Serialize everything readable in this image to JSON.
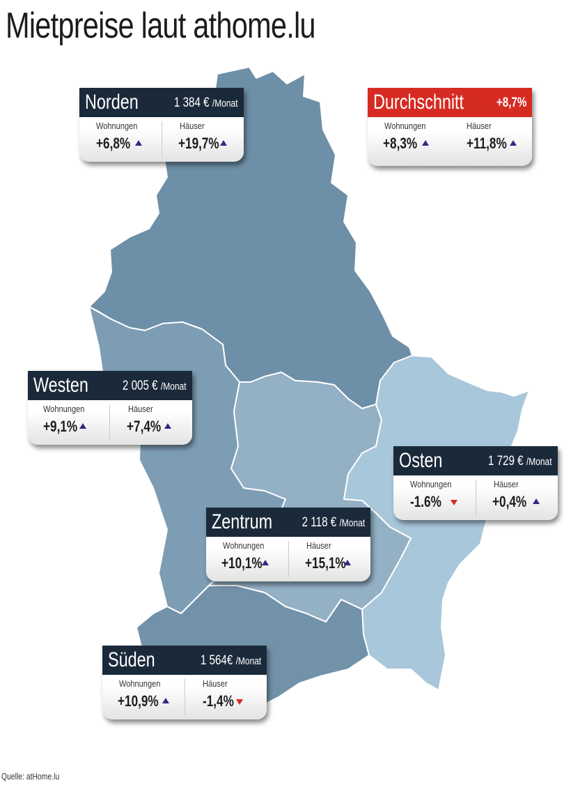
{
  "title": "Mietpreise laut athome.lu",
  "source": "Quelle: atHome.lu",
  "colors": {
    "header_dark": "#1b2a3a",
    "header_red": "#d62b22",
    "arrow_up": "#2e2a86",
    "arrow_down": "#d62b22",
    "norden": "#6d8fa7",
    "westen": "#7d9db4",
    "zentrum": "#93b0c5",
    "osten": "#a9c7da",
    "sueden": "#7292aa"
  },
  "cards": {
    "norden": {
      "region": "Norden",
      "price": "1 384 €",
      "unit": "/Monat",
      "apartments_label": "Wohnungen",
      "apartments_value": "+6,8%",
      "apartments_trend": "up",
      "houses_label": "Häuser",
      "houses_value": "+19,7%",
      "houses_trend": "up"
    },
    "durchschnitt": {
      "region": "Durchschnitt",
      "price": "+8,7%",
      "unit": "",
      "apartments_label": "Wohnungen",
      "apartments_value": "+8,3%",
      "apartments_trend": "up",
      "houses_label": "Häuser",
      "houses_value": "+11,8%",
      "houses_trend": "up"
    },
    "westen": {
      "region": "Westen",
      "price": "2 005 €",
      "unit": "/Monat",
      "apartments_label": "Wohnungen",
      "apartments_value": "+9,1%",
      "apartments_trend": "up",
      "houses_label": "Häuser",
      "houses_value": "+7,4%",
      "houses_trend": "up"
    },
    "osten": {
      "region": "Osten",
      "price": "1 729 €",
      "unit": "/Monat",
      "apartments_label": "Wohnungen",
      "apartments_value": "-1.6%",
      "apartments_trend": "down",
      "houses_label": "Häuser",
      "houses_value": "+0,4%",
      "houses_trend": "up"
    },
    "zentrum": {
      "region": "Zentrum",
      "price": "2 118 €",
      "unit": "/Monat",
      "apartments_label": "Wohnungen",
      "apartments_value": "+10,1%",
      "apartments_trend": "up",
      "houses_label": "Häuser",
      "houses_value": "+15,1%",
      "houses_trend": "up"
    },
    "sueden": {
      "region": "Süden",
      "price": "1 564€",
      "unit": "/Monat",
      "apartments_label": "Wohnungen",
      "apartments_value": "+10,9%",
      "apartments_trend": "up",
      "houses_label": "Häuser",
      "houses_value": "-1,4%",
      "houses_trend": "down"
    }
  }
}
